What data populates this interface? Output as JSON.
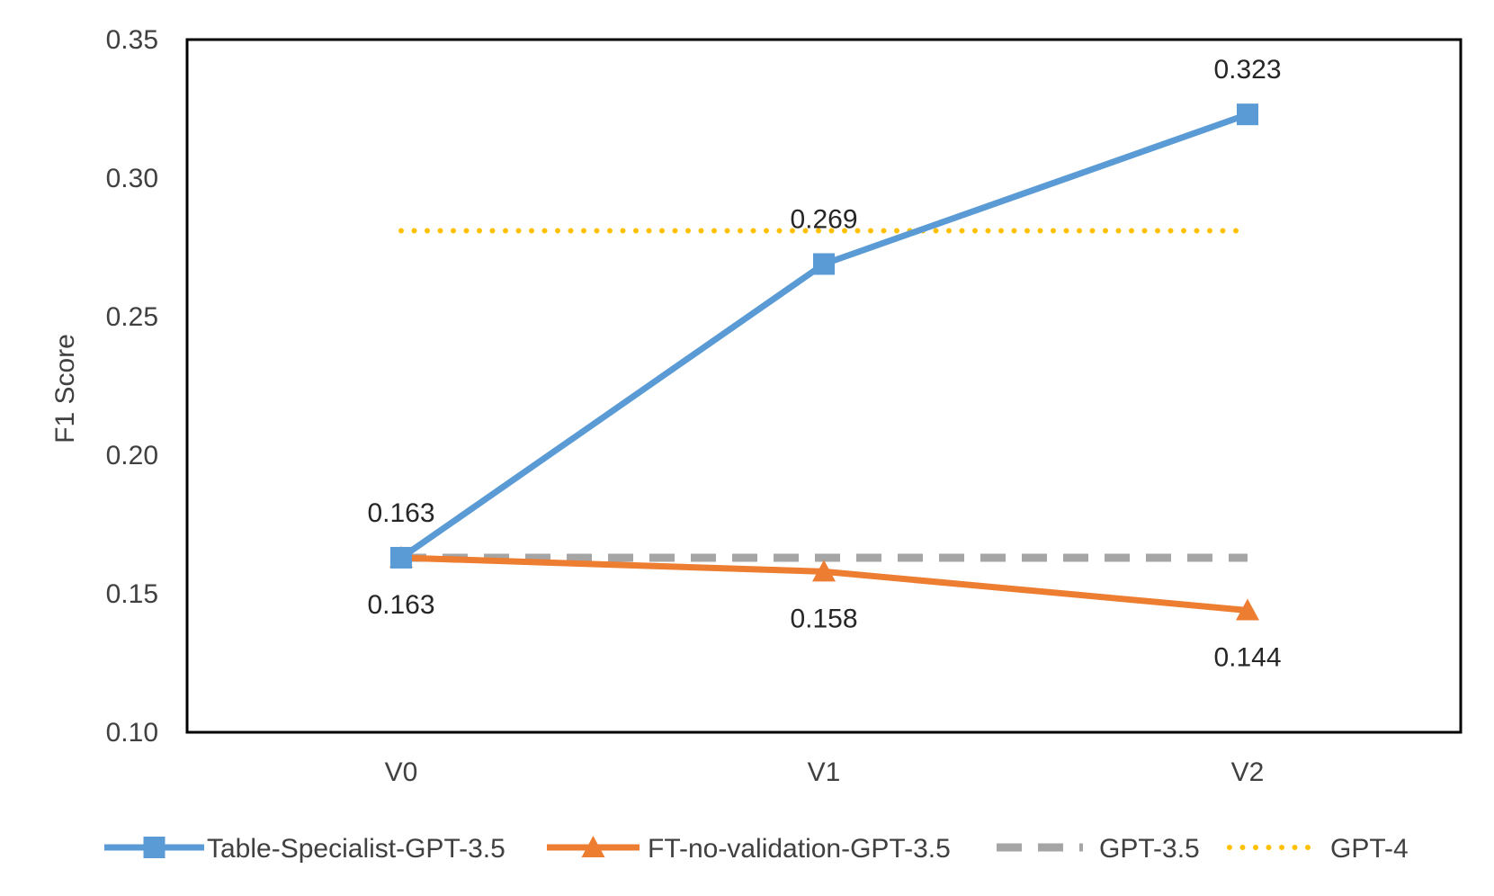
{
  "chart_data": {
    "type": "line",
    "title": "",
    "xlabel": "",
    "ylabel": "F1 Score",
    "categories": [
      "V0",
      "V1",
      "V2"
    ],
    "ylim": [
      0.1,
      0.35
    ],
    "yticks": [
      0.1,
      0.15,
      0.2,
      0.25,
      0.3,
      0.35
    ],
    "ytick_labels": [
      "0.10",
      "0.15",
      "0.20",
      "0.25",
      "0.30",
      "0.35"
    ],
    "grid": false,
    "legend_position": "bottom",
    "series": [
      {
        "name": "Table-Specialist-GPT-3.5",
        "values": [
          0.163,
          0.269,
          0.323
        ],
        "labels": [
          "0.163",
          "0.269",
          "0.323"
        ],
        "color": "#5B9BD5",
        "style": "solid",
        "marker": "square"
      },
      {
        "name": "FT-no-validation-GPT-3.5",
        "values": [
          0.163,
          0.158,
          0.144
        ],
        "labels": [
          "0.163",
          "0.158",
          "0.144"
        ],
        "color": "#ED7D31",
        "style": "solid",
        "marker": "triangle"
      },
      {
        "name": "GPT-3.5",
        "values": [
          0.163,
          0.163,
          0.163
        ],
        "color": "#A5A5A5",
        "style": "dashed",
        "marker": "none"
      },
      {
        "name": "GPT-4",
        "values": [
          0.281,
          0.281,
          0.281
        ],
        "color": "#FFC000",
        "style": "dotted",
        "marker": "none"
      }
    ]
  }
}
